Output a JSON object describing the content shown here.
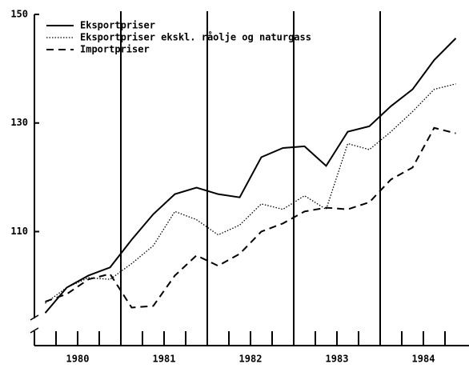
{
  "chart_data": {
    "type": "line",
    "x": [
      1980.125,
      1980.375,
      1980.625,
      1980.875,
      1981.125,
      1981.375,
      1981.625,
      1981.875,
      1982.125,
      1982.375,
      1982.625,
      1982.875,
      1983.125,
      1983.375,
      1983.625,
      1983.875,
      1984.125,
      1984.375,
      1984.625,
      1984.875
    ],
    "series": [
      {
        "name": "Eksportpriser",
        "color": "#000000",
        "dash": "solid",
        "values": [
          95.0,
          99.7,
          101.9,
          103.4,
          108.5,
          113.2,
          116.9,
          118.1,
          116.9,
          116.3,
          123.7,
          125.4,
          125.7,
          122.1,
          128.4,
          129.4,
          133.1,
          136.2,
          141.6,
          145.6
        ]
      },
      {
        "name": "Eksportpriser ekskl. råolje og naturgass",
        "color": "#000000",
        "dash": "dotted",
        "values": [
          96.8,
          99.7,
          101.5,
          101.2,
          104.1,
          107.4,
          113.7,
          112.2,
          109.4,
          111.2,
          115.1,
          114.1,
          116.6,
          114.1,
          126.2,
          125.1,
          128.4,
          132.1,
          136.2,
          137.2
        ]
      },
      {
        "name": "Importpriser",
        "color": "#000000",
        "dash": "dashed",
        "values": [
          97.1,
          98.5,
          101.2,
          102.2,
          96.0,
          96.3,
          101.9,
          105.6,
          103.7,
          105.9,
          110.0,
          111.5,
          113.7,
          114.4,
          114.1,
          115.4,
          119.6,
          121.8,
          129.1,
          128.1
        ]
      }
    ],
    "xlim": [
      1980,
      1985
    ],
    "xticks": [
      {
        "value": 1980.5,
        "label": "1980"
      },
      {
        "value": 1981.5,
        "label": "1981"
      },
      {
        "value": 1982.5,
        "label": "1982"
      },
      {
        "value": 1983.5,
        "label": "1983"
      },
      {
        "value": 1984.5,
        "label": "1984"
      }
    ],
    "ylim": [
      89,
      150
    ],
    "yticks": [
      110,
      130,
      150
    ],
    "legend": "top-left"
  }
}
